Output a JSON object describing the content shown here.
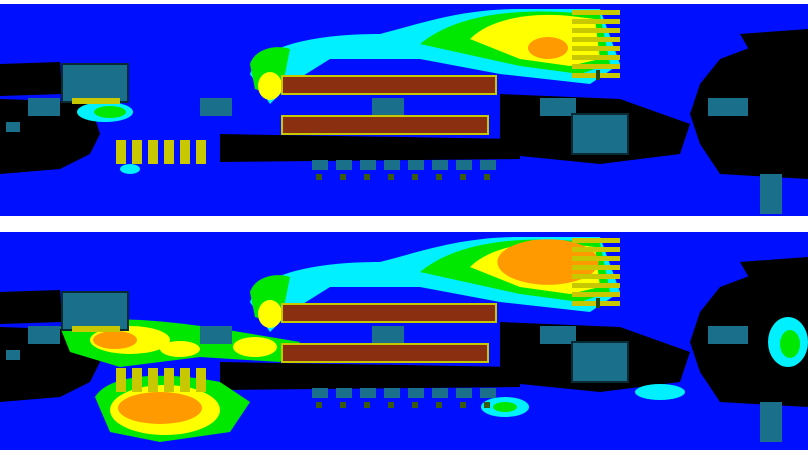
{
  "figure": {
    "panels": [
      {
        "id": "top",
        "plume_intensity": "moderate"
      },
      {
        "id": "bottom",
        "plume_intensity": "high"
      }
    ],
    "colors": {
      "background": "#000000",
      "level_1": "#0010ff",
      "level_2": "#00f0ff",
      "level_3": "#00e800",
      "level_4": "#ffff00",
      "level_5": "#ff9a00",
      "heater": "#8a2f10",
      "equipment": "#1a6f8a",
      "louver": "#c8c800",
      "separator": "#ffffff"
    }
  }
}
